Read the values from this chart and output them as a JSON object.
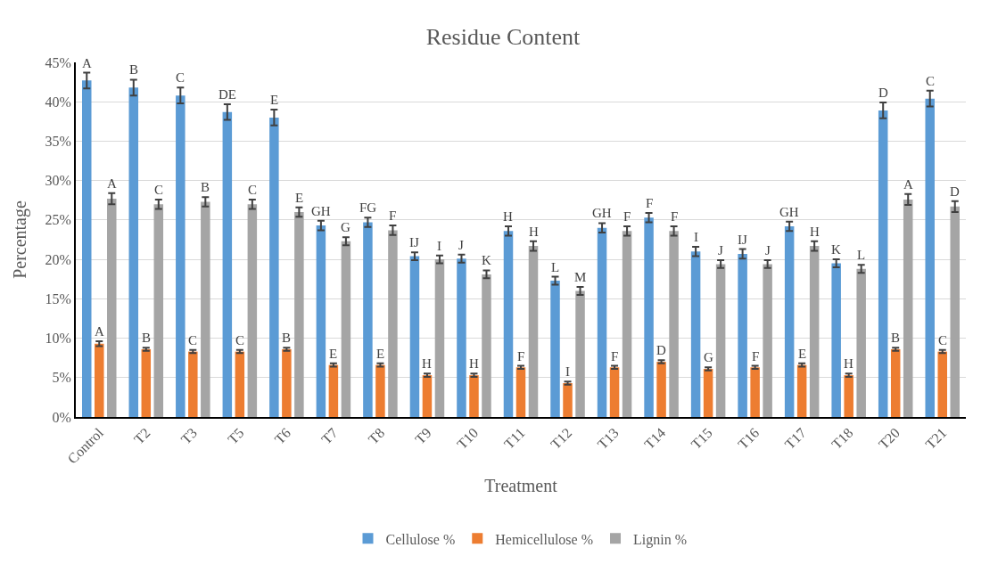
{
  "chart_data": {
    "type": "bar",
    "title": "Residue Content",
    "xlabel": "Treatment",
    "ylabel": "Percentage",
    "categories": [
      "Control",
      "T2",
      "T3",
      "T5",
      "T6",
      "T7",
      "T8",
      "T9",
      "T10",
      "T11",
      "T12",
      "T13",
      "T14",
      "T15",
      "T16",
      "T17",
      "T18",
      "T20",
      "T21"
    ],
    "series": [
      {
        "name": "Cellulose %",
        "color": "#5b9bd5",
        "values": [
          42.7,
          41.8,
          40.8,
          38.7,
          38.0,
          24.3,
          24.7,
          20.4,
          20.1,
          23.6,
          17.3,
          24.0,
          25.3,
          21.0,
          20.7,
          24.2,
          19.5,
          38.9,
          40.4
        ],
        "errors": [
          1.0,
          1.0,
          1.0,
          1.0,
          1.0,
          0.6,
          0.6,
          0.5,
          0.5,
          0.6,
          0.5,
          0.6,
          0.6,
          0.6,
          0.6,
          0.6,
          0.5,
          1.0,
          1.0
        ],
        "value_labels": [
          "A",
          "B",
          "C",
          "DE",
          "E",
          "GH",
          "FG",
          "IJ",
          "J",
          "H",
          "L",
          "GH",
          "F",
          "I",
          "IJ",
          "GH",
          "K",
          "D",
          "C"
        ]
      },
      {
        "name": "Hemicellulose %",
        "color": "#ed7d31",
        "values": [
          9.3,
          8.6,
          8.3,
          8.3,
          8.6,
          6.6,
          6.6,
          5.3,
          5.3,
          6.3,
          4.3,
          6.3,
          7.0,
          6.1,
          6.3,
          6.6,
          5.3,
          8.6,
          8.3
        ],
        "errors": [
          0.3,
          0.2,
          0.2,
          0.2,
          0.2,
          0.2,
          0.2,
          0.2,
          0.2,
          0.2,
          0.2,
          0.2,
          0.2,
          0.2,
          0.2,
          0.2,
          0.2,
          0.2,
          0.2
        ],
        "value_labels": [
          "A",
          "B",
          "C",
          "C",
          "B",
          "E",
          "E",
          "H",
          "H",
          "F",
          "I",
          "F",
          "D",
          "G",
          "F",
          "E",
          "H",
          "B",
          "C"
        ]
      },
      {
        "name": "Lignin %",
        "color": "#a5a5a5",
        "values": [
          27.7,
          27.0,
          27.3,
          27.0,
          26.0,
          22.3,
          23.7,
          20.0,
          18.1,
          21.7,
          16.0,
          23.6,
          23.6,
          19.4,
          19.4,
          21.7,
          18.8,
          27.6,
          26.7
        ],
        "errors": [
          0.7,
          0.6,
          0.6,
          0.6,
          0.6,
          0.5,
          0.6,
          0.5,
          0.5,
          0.6,
          0.5,
          0.6,
          0.6,
          0.5,
          0.5,
          0.6,
          0.5,
          0.7,
          0.7
        ],
        "value_labels": [
          "A",
          "C",
          "B",
          "C",
          "E",
          "G",
          "F",
          "I",
          "K",
          "H",
          "M",
          "F",
          "F",
          "J",
          "J",
          "H",
          "L",
          "A",
          "D"
        ]
      }
    ],
    "ylim": [
      0,
      45
    ],
    "yticks": [
      {
        "value": 0,
        "label": "0%"
      },
      {
        "value": 5,
        "label": "5%"
      },
      {
        "value": 10,
        "label": "10%"
      },
      {
        "value": 15,
        "label": "15%"
      },
      {
        "value": 20,
        "label": "20%"
      },
      {
        "value": 25,
        "label": "25%"
      },
      {
        "value": 30,
        "label": "30%"
      },
      {
        "value": 35,
        "label": "35%"
      },
      {
        "value": 40,
        "label": "40%"
      },
      {
        "value": 45,
        "label": "45%"
      }
    ],
    "grid": "y",
    "legend": "bottom"
  }
}
